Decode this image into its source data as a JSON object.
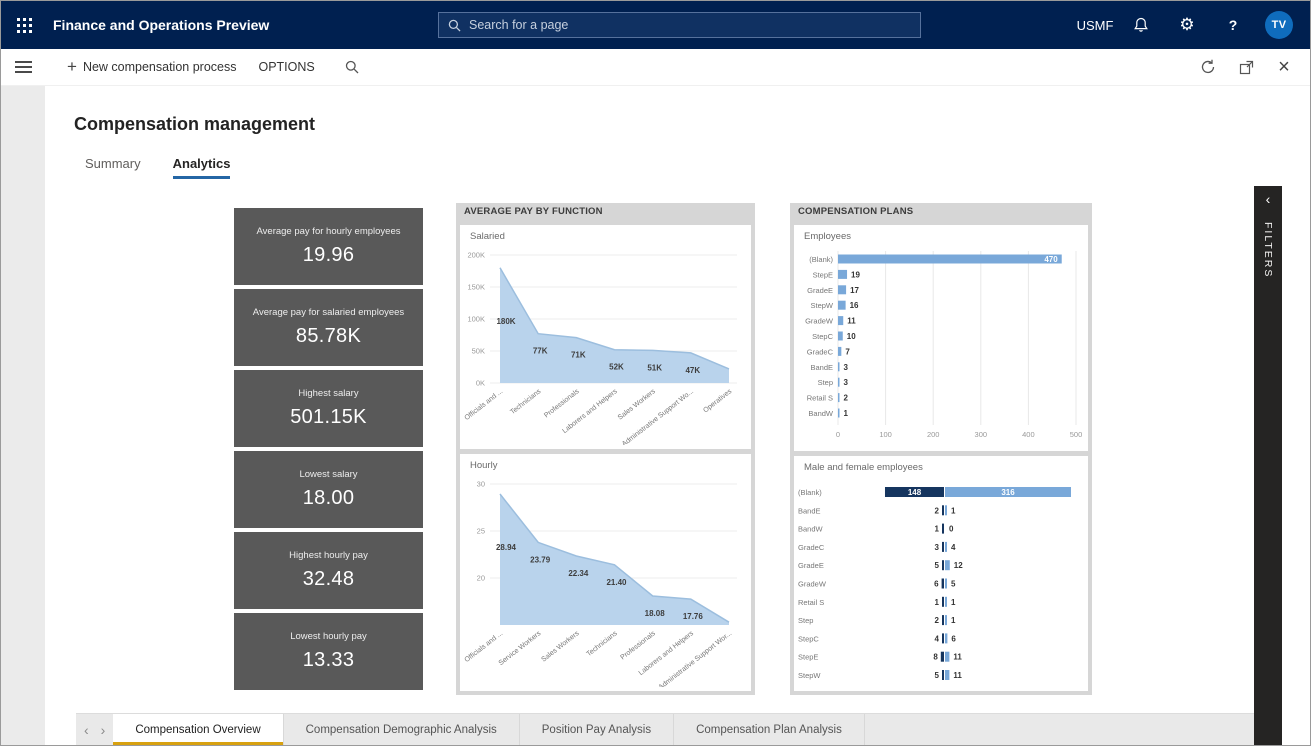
{
  "colors": {
    "topbar_bg": "#002050",
    "accent_blue": "#0f6cbd",
    "kpi_card_bg": "#595959",
    "area_fill": "#b9d3ec",
    "area_stroke": "#9cbede",
    "bar_blue": "#79a8d9",
    "bar_dark": "#15355f",
    "tab_underline": "#2466a5",
    "report_tab_active_underline": "#d8a10f",
    "filters_bg": "#252423"
  },
  "topbar": {
    "app_title": "Finance and Operations Preview",
    "search_placeholder": "Search for a page",
    "company": "USMF",
    "avatar_initials": "TV"
  },
  "action_bar": {
    "new_button": "New compensation process",
    "options": "OPTIONS"
  },
  "page": {
    "title": "Compensation management",
    "tabs": [
      {
        "label": "Summary",
        "active": false
      },
      {
        "label": "Analytics",
        "active": true
      }
    ]
  },
  "kpi_cards": [
    {
      "label": "Average pay for hourly employees",
      "value": "19.96"
    },
    {
      "label": "Average pay for salaried employees",
      "value": "85.78K"
    },
    {
      "label": "Highest salary",
      "value": "501.15K"
    },
    {
      "label": "Lowest salary",
      "value": "18.00"
    },
    {
      "label": "Highest hourly pay",
      "value": "32.48"
    },
    {
      "label": "Lowest hourly pay",
      "value": "13.33"
    }
  ],
  "panels": {
    "avg_pay": {
      "title": "AVERAGE PAY BY FUNCTION"
    },
    "comp_plans": {
      "title": "COMPENSATION PLANS"
    }
  },
  "filters_pane": {
    "label": "FILTERS"
  },
  "chart_data": [
    {
      "type": "area",
      "title": "Salaried",
      "categories": [
        "Officials and ...",
        "Technicians",
        "Professionals",
        "Laborers and Helpers",
        "Sales Workers",
        "Administrative Support Wo...",
        "Operatives"
      ],
      "values": [
        180000,
        77000,
        71000,
        52000,
        51000,
        47000,
        22000
      ],
      "labels": [
        "180K",
        "77K",
        "71K",
        "52K",
        "51K",
        "47K",
        ""
      ],
      "ylim": [
        0,
        200000
      ],
      "yticks": [
        {
          "value": 200000,
          "label": "200K"
        },
        {
          "value": 150000,
          "label": "150K"
        },
        {
          "value": 100000,
          "label": "100K"
        },
        {
          "value": 50000,
          "label": "50K"
        },
        {
          "value": 0,
          "label": "0K"
        }
      ],
      "grid": true,
      "legend": "none"
    },
    {
      "type": "area",
      "title": "Hourly",
      "categories": [
        "Officials and ...",
        "Service Workers",
        "Sales Workers",
        "Technicians",
        "Professionals",
        "Laborers and Helpers",
        "Administrative Support Wor..."
      ],
      "values": [
        28.94,
        23.79,
        22.34,
        21.4,
        18.08,
        17.76,
        15.3
      ],
      "labels": [
        "28.94",
        "23.79",
        "22.34",
        "21.40",
        "18.08",
        "17.76",
        ""
      ],
      "ylim": [
        15,
        30
      ],
      "yticks": [
        {
          "value": 30,
          "label": "30"
        },
        {
          "value": 25,
          "label": "25"
        },
        {
          "value": 20,
          "label": "20"
        }
      ],
      "grid": true,
      "legend": "none"
    },
    {
      "type": "bar",
      "title": "Employees",
      "categories": [
        "(Blank)",
        "StepE",
        "GradeE",
        "StepW",
        "GradeW",
        "StepC",
        "GradeC",
        "BandE",
        "Step",
        "Retail S",
        "BandW"
      ],
      "values": [
        470,
        19,
        17,
        16,
        11,
        10,
        7,
        3,
        3,
        2,
        1
      ],
      "xlim": [
        0,
        500
      ],
      "xticks": [
        0,
        100,
        200,
        300,
        400,
        500
      ],
      "grid": true,
      "legend": "none"
    },
    {
      "type": "butterfly-bar",
      "title": "Male and female employees",
      "categories": [
        "(Blank)",
        "BandE",
        "BandW",
        "GradeC",
        "GradeE",
        "GradeW",
        "Retail S",
        "Step",
        "StepC",
        "StepE",
        "StepW"
      ],
      "series": [
        {
          "name": "male",
          "values": [
            148,
            2,
            1,
            3,
            5,
            6,
            1,
            2,
            4,
            8,
            5
          ]
        },
        {
          "name": "female",
          "values": [
            316,
            1,
            0,
            4,
            12,
            5,
            1,
            1,
            6,
            11,
            11
          ]
        }
      ],
      "grid": false,
      "legend": "none"
    }
  ],
  "report_tabs": {
    "items": [
      {
        "label": "Compensation Overview",
        "active": true
      },
      {
        "label": "Compensation Demographic Analysis",
        "active": false
      },
      {
        "label": "Position Pay Analysis",
        "active": false
      },
      {
        "label": "Compensation Plan Analysis",
        "active": false
      }
    ]
  }
}
